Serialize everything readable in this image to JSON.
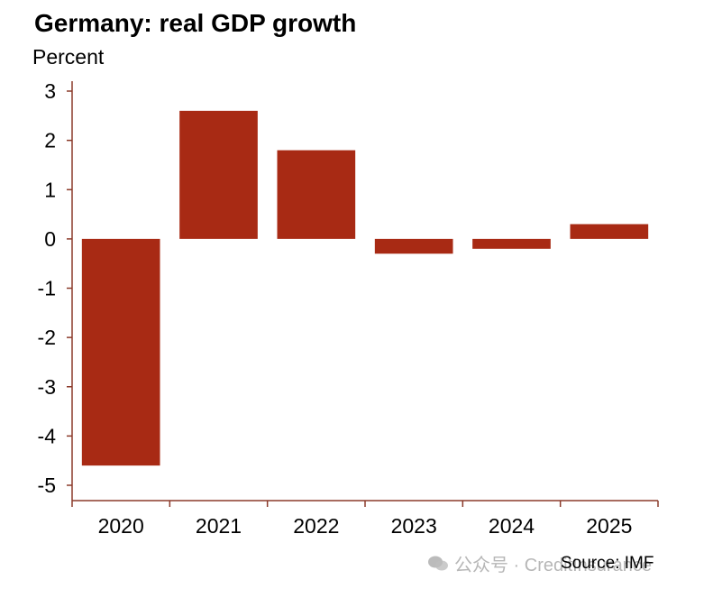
{
  "title": "Germany: real GDP growth",
  "ylabel": "Percent",
  "source": "Source: IMF",
  "watermark": "公众号 · CreditInsurance",
  "colors": {
    "bar": "#A82A14",
    "axis": "#8B3A2A"
  },
  "chart_data": {
    "type": "bar",
    "categories": [
      "2020",
      "2021",
      "2022",
      "2023",
      "2024",
      "2025"
    ],
    "values": [
      -4.6,
      2.6,
      1.8,
      -0.3,
      -0.2,
      0.3
    ],
    "title": "Germany: real GDP growth",
    "xlabel": "",
    "ylabel": "Percent",
    "ylim": [
      -5,
      3
    ],
    "yticks": [
      "3",
      "2",
      "1",
      "0",
      "-1",
      "-2",
      "-3",
      "-4",
      "-5"
    ],
    "grid": false,
    "legend": "none"
  }
}
